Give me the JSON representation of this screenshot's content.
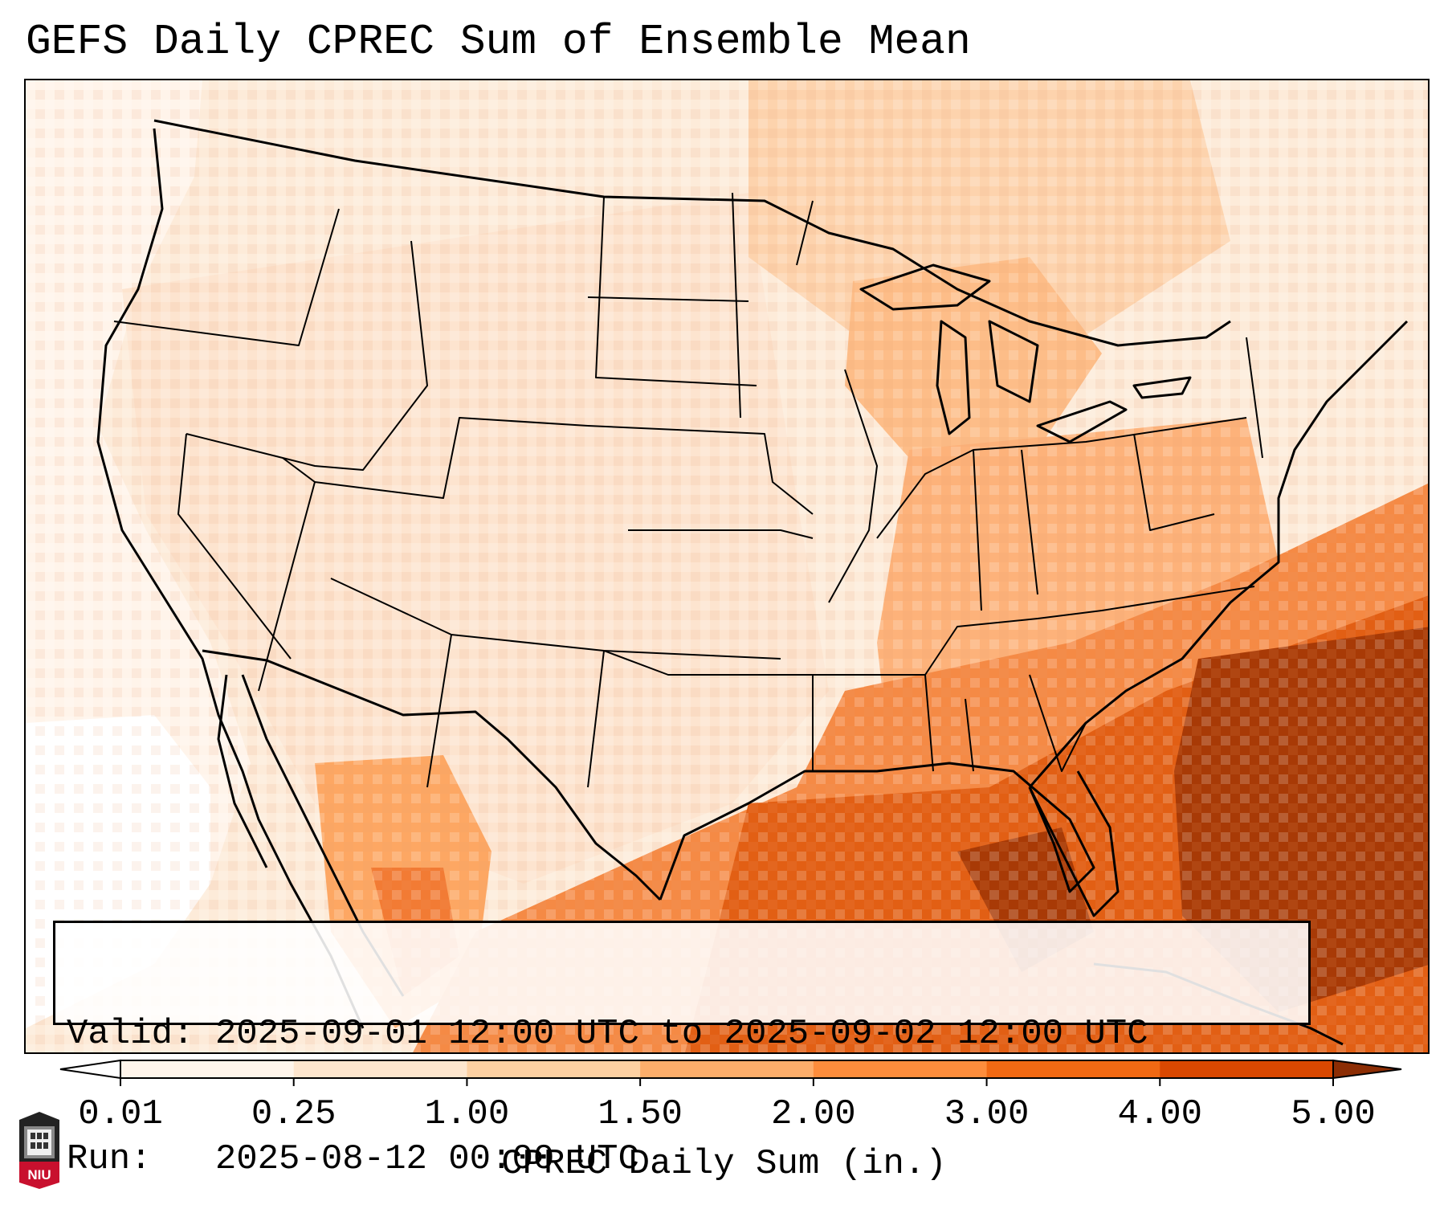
{
  "title": "GEFS Daily CPREC Sum of Ensemble Mean",
  "info": {
    "valid_line": "Valid: 2025-09-01 12:00 UTC to 2025-09-02 12:00 UTC",
    "run_line": "Run:   2025-08-12 00:00 UTC"
  },
  "colorbar": {
    "label": "CPREC Daily Sum (in.)",
    "ticks": [
      "0.01",
      "0.25",
      "1.00",
      "1.50",
      "2.00",
      "3.00",
      "4.00",
      "5.00"
    ],
    "colors": [
      "#fff5eb",
      "#fee6ce",
      "#fdd0a2",
      "#fdae6b",
      "#fd8d3c",
      "#f16913",
      "#d94801",
      "#8c2d04"
    ],
    "extend": "both"
  },
  "logo": {
    "text": "NIU",
    "accent": "#c8102e"
  },
  "colors": {
    "water_background": "#fff3e6",
    "ocean_southeast": "#d94801",
    "ocean_core": "#8c2d04",
    "land_default": "#fde9d8",
    "border": "#000000"
  }
}
